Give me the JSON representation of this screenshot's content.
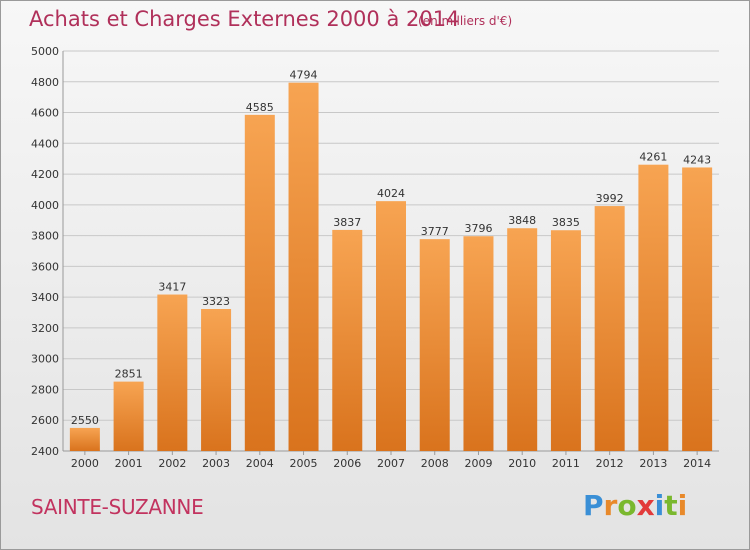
{
  "header": {
    "title": "Achats et Charges Externes 2000 à 2014",
    "unit": "(en milliers d'€)"
  },
  "footer": {
    "location": "SAINTE-SUZANNE",
    "logo_letters": [
      "P",
      "r",
      "o",
      "x",
      "i",
      "t",
      "i"
    ],
    "logo_colors": [
      "#3a8fd6",
      "#e8892a",
      "#7ab82e",
      "#e23a3a",
      "#3a8fd6",
      "#7ab82e",
      "#e8892a"
    ]
  },
  "colors": {
    "bar_top": "#f7a452",
    "bar_bottom": "#d9731d",
    "grid": "#c8c8c8",
    "text": "#333333"
  },
  "chart_data": {
    "type": "bar",
    "categories": [
      "2000",
      "2001",
      "2002",
      "2003",
      "2004",
      "2005",
      "2006",
      "2007",
      "2008",
      "2009",
      "2010",
      "2011",
      "2012",
      "2013",
      "2014"
    ],
    "values": [
      2550,
      2851,
      3417,
      3323,
      4585,
      4794,
      3837,
      4024,
      3777,
      3796,
      3848,
      3835,
      3992,
      4261,
      4243
    ],
    "title": "Achats et Charges Externes 2000 à 2014",
    "ylim": [
      2400,
      5000
    ],
    "yticks": [
      2400,
      2600,
      2800,
      3000,
      3200,
      3400,
      3600,
      3800,
      4000,
      4200,
      4400,
      4600,
      4800,
      5000
    ],
    "grid": true
  }
}
